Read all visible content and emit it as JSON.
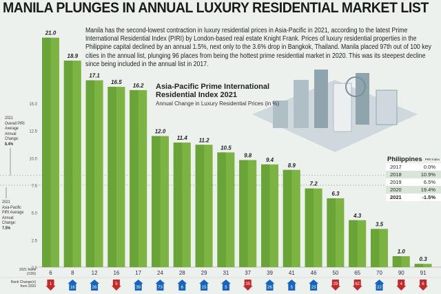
{
  "title": "MANILA PLUNGES IN ANNUAL LUXURY RESIDENTIAL MARKET LIST",
  "intro": "Manila has the second-lowest contraction in luxury residential prices in Asia-Pacific in 2021, according to the latest Prime International Residential Index (PIRI) by London-based real estate Knight Frank. Prices of luxury residential properties in the Philippine capital declined by an annual 1.5%, next only to the 3.6% drop in Bangkok, Thailand. Manila placed 97th out of 100 key cities in the annual list, plunging 96 places from being the hottest prime residential market in 2020. This was its steepest decline since being included in the annual list in 2017.",
  "notes": {
    "overall": [
      "2021",
      "Overall PIRI",
      "Average",
      "Annual",
      "Change:",
      "8.4%"
    ],
    "apac": [
      "2021",
      "Asia-Pacific",
      "PIRI Average",
      "Annual",
      "Change:",
      "7.5%"
    ]
  },
  "philippines": {
    "title": "Philippines",
    "col": "PIRI Index",
    "rows": [
      {
        "year": "2017",
        "value": "0.0%"
      },
      {
        "year": "2018",
        "value": "10.9%"
      },
      {
        "year": "2019",
        "value": "6.5%"
      },
      {
        "year": "2020",
        "value": "19.4%"
      },
      {
        "year": "2021",
        "value": "-1.5%"
      }
    ]
  },
  "chart_data": {
    "type": "bar",
    "title": "Asia-Pacific Prime International Residential Index 2021",
    "subtitle": "Annual Change in Luxury Residential Prices (in %)",
    "values": [
      21.0,
      18.9,
      17.1,
      16.5,
      16.2,
      12.0,
      11.4,
      11.2,
      10.5,
      9.8,
      9.4,
      8.9,
      7.2,
      6.3,
      4.3,
      3.5,
      1.0,
      0.3
    ],
    "value_labels": [
      "21.0",
      "18.9",
      "17.1",
      "16.5",
      "16.2",
      "12.0",
      "11.4",
      "11.2",
      "10.5",
      "9.8",
      "9.4",
      "8.9",
      "7.2",
      "6.3",
      "4.3",
      "3.5",
      "1.0",
      "0.3"
    ],
    "ylim": [
      0,
      22
    ],
    "yticks": [
      "0.0",
      "2.5",
      "5.0",
      "7.5",
      "10.0",
      "12.5",
      "15.0"
    ],
    "reference_lines": [
      8.4,
      7.5
    ],
    "bar_color": "#7cb342",
    "rank_label": "2021 Rank (/100)",
    "ranks": [
      "6",
      "8",
      "12",
      "16",
      "17",
      "24",
      "28",
      "29",
      "31",
      "37",
      "39",
      "41",
      "46",
      "50",
      "65",
      "70",
      "90",
      "91"
    ],
    "change_label": "Rank Change(s) from 2020",
    "rank_changes": [
      {
        "n": "1",
        "dir": "down"
      },
      {
        "n": "16",
        "dir": "up"
      },
      {
        "n": "26",
        "dir": "up"
      },
      {
        "n": "5",
        "dir": "down"
      },
      {
        "n": "39",
        "dir": "up"
      },
      {
        "n": "73",
        "dir": "up"
      },
      {
        "n": "6",
        "dir": "up"
      },
      {
        "n": "15",
        "dir": "up"
      },
      {
        "n": "5",
        "dir": "up"
      },
      {
        "n": "35",
        "dir": "down"
      },
      {
        "n": "26",
        "dir": "up"
      },
      {
        "n": "5",
        "dir": "up"
      },
      {
        "n": "23",
        "dir": "up"
      },
      {
        "n": "29",
        "dir": "down"
      },
      {
        "n": "62",
        "dir": "down"
      },
      {
        "n": "22",
        "dir": "up"
      },
      {
        "n": "4",
        "dir": "down"
      },
      {
        "n": "6",
        "dir": "down"
      }
    ],
    "up_color": "#1565c0",
    "down_color": "#c62828"
  }
}
